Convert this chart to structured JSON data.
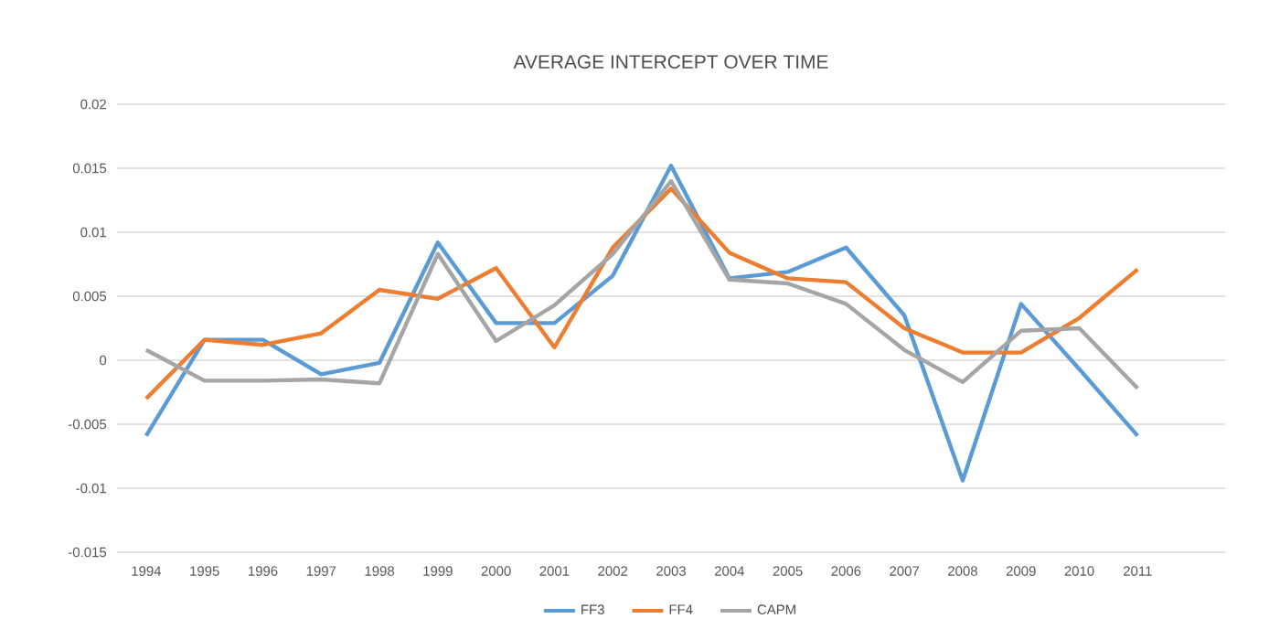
{
  "chart_data": {
    "type": "line",
    "title": "AVERAGE INTERCEPT OVER TIME",
    "categories": [
      "1994",
      "1995",
      "1996",
      "1997",
      "1998",
      "1999",
      "2000",
      "2001",
      "2002",
      "2003",
      "2004",
      "2005",
      "2006",
      "2007",
      "2008",
      "2009",
      "2010",
      "2011"
    ],
    "series": [
      {
        "name": "FF3",
        "color": "#5b9bd5",
        "values": [
          -0.0059,
          0.0016,
          0.0016,
          -0.0011,
          -0.0002,
          0.0092,
          0.0029,
          0.0029,
          0.0066,
          0.0152,
          0.0064,
          0.0069,
          0.0088,
          0.0035,
          -0.0094,
          0.0044,
          -0.0007,
          -0.0059
        ]
      },
      {
        "name": "FF4",
        "color": "#ed7d31",
        "values": [
          -0.003,
          0.0016,
          0.0012,
          0.0021,
          0.0055,
          0.0048,
          0.0072,
          0.001,
          0.0088,
          0.0134,
          0.0084,
          0.0064,
          0.0061,
          0.0025,
          0.0006,
          0.0006,
          0.0033,
          0.0071
        ]
      },
      {
        "name": "CAPM",
        "color": "#a5a5a5",
        "values": [
          0.0008,
          -0.0016,
          -0.0016,
          -0.0015,
          -0.0018,
          0.0083,
          0.0015,
          0.0043,
          0.0083,
          0.014,
          0.0063,
          0.006,
          0.0044,
          0.0008,
          -0.0017,
          0.0023,
          0.0025,
          -0.0022
        ]
      }
    ],
    "ylim": [
      -0.015,
      0.02
    ],
    "yticks": [
      0.02,
      0.015,
      0.01,
      0.005,
      0,
      -0.005,
      -0.01,
      -0.015
    ],
    "grid": "y",
    "legend": "bottom",
    "marker": "none",
    "line_style": "solid"
  }
}
